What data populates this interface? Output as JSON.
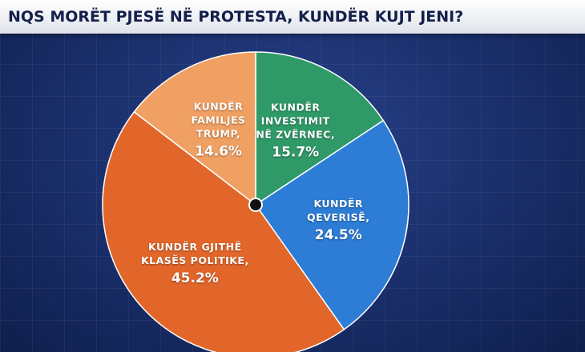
{
  "chart_data": {
    "type": "pie",
    "title": "NQS MORËT PJESË NË PROTESTA, KUNDËR KUJT JENI?",
    "categories": [
      "KUNDËR INVESTIMIT NË ZVËRNEC,",
      "KUNDËR QEVERISË,",
      "KUNDËR GJITHË KLASËS POLITIKE,",
      "KUNDËR FAMILJES TRUMP,"
    ],
    "values": [
      15.7,
      24.5,
      45.2,
      14.6
    ],
    "value_labels": [
      "15.7%",
      "24.5%",
      "45.2%",
      "14.6%"
    ],
    "colors": [
      "#2f9a68",
      "#2d7dd6",
      "#e2662a",
      "#f0a062"
    ]
  }
}
